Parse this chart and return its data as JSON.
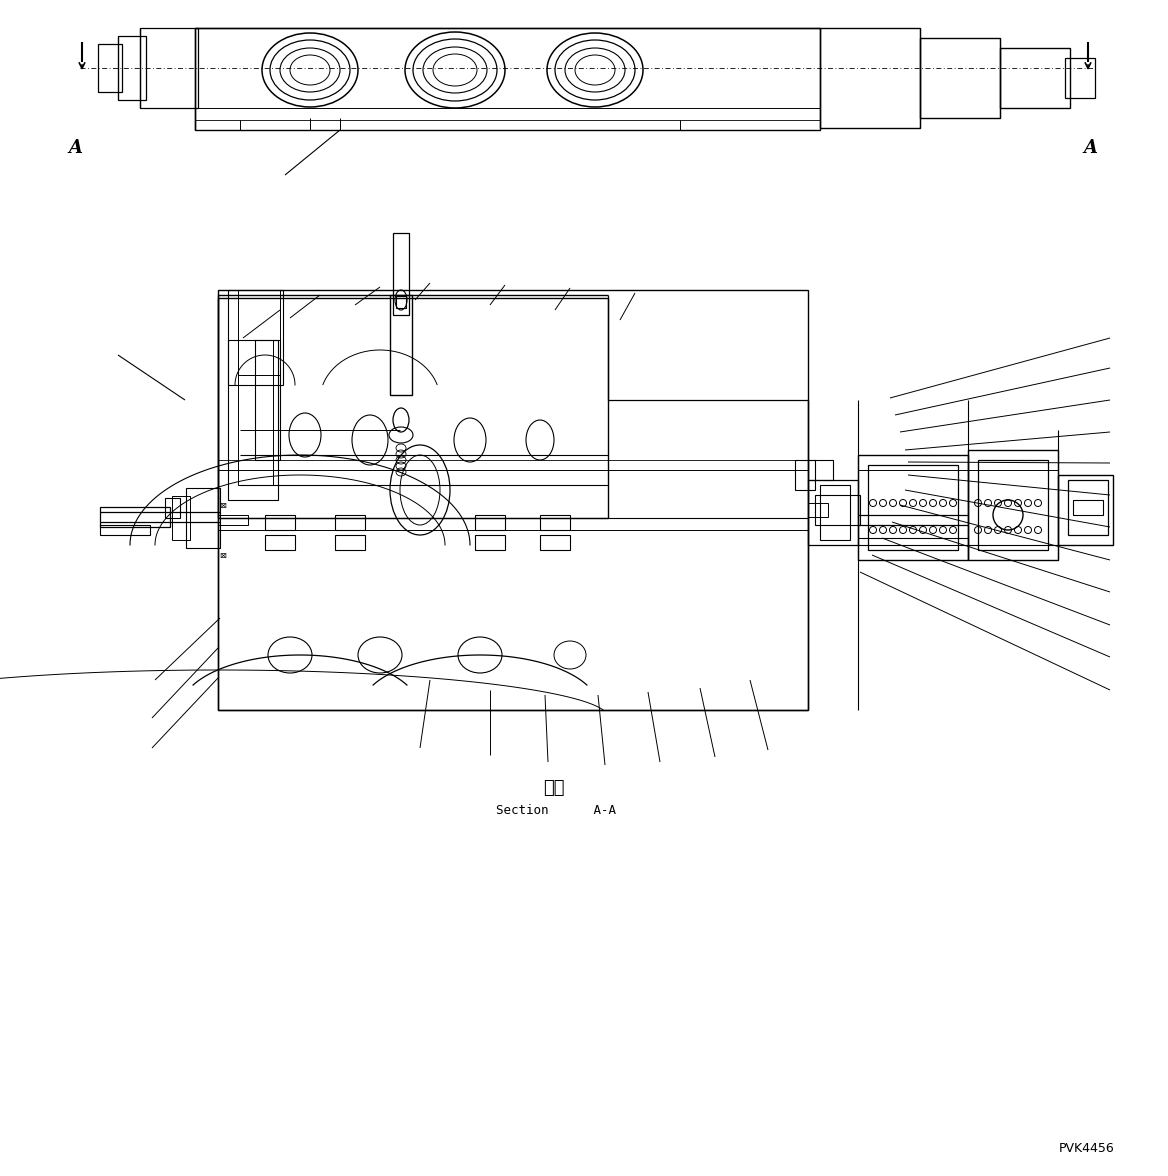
{
  "background_color": "#ffffff",
  "line_color": "#000000",
  "fig_width": 11.68,
  "fig_height": 11.76,
  "section_label_japanese": "断面",
  "section_label_english": "Section      A-A",
  "label_A_left": "A",
  "label_A_right": "A",
  "code_label": "PVK4456"
}
